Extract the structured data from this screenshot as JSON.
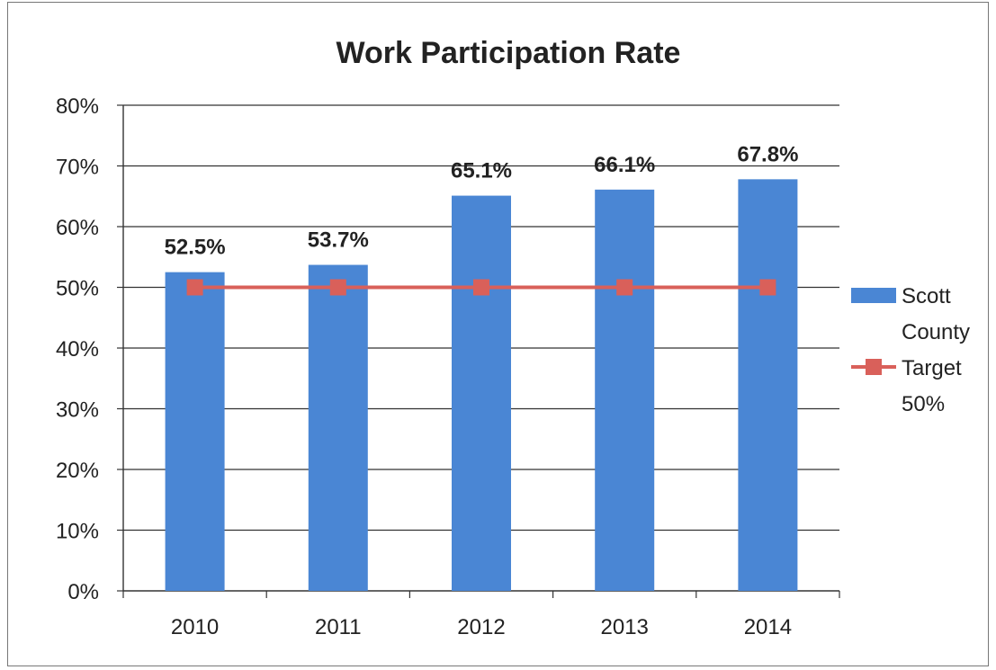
{
  "chart_data": {
    "type": "bar",
    "title": "Work Participation Rate",
    "categories": [
      "2010",
      "2011",
      "2012",
      "2013",
      "2014"
    ],
    "series": [
      {
        "name": "Scott County",
        "kind": "bar",
        "color": "#4a86d4",
        "values": [
          52.5,
          53.7,
          65.1,
          66.1,
          67.8
        ],
        "labels": [
          "52.5%",
          "53.7%",
          "65.1%",
          "66.1%",
          "67.8%"
        ]
      },
      {
        "name": "Target 50%",
        "kind": "line",
        "color": "#d9605a",
        "values": [
          50,
          50,
          50,
          50,
          50
        ]
      }
    ],
    "ylim": [
      0,
      80
    ],
    "yticks": [
      0,
      10,
      20,
      30,
      40,
      50,
      60,
      70,
      80
    ],
    "ytick_labels": [
      "0%",
      "10%",
      "20%",
      "30%",
      "40%",
      "50%",
      "60%",
      "70%",
      "80%"
    ],
    "grid": true,
    "legend_position": "right",
    "legend": [
      {
        "line1": "Scott",
        "line2": "County"
      },
      {
        "line1": "Target",
        "line2": "50%"
      }
    ]
  }
}
